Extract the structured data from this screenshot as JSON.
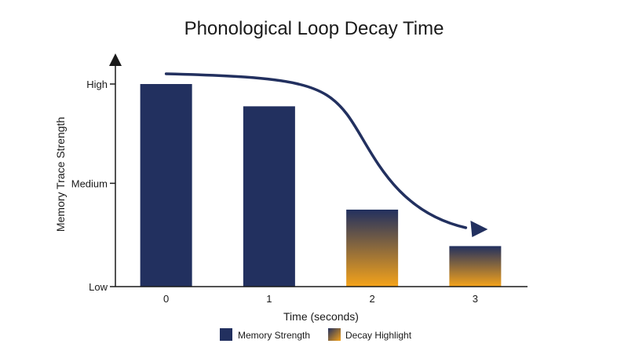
{
  "chart_data": {
    "type": "bar",
    "title": "Phonological Loop Decay Time",
    "xlabel": "Time (seconds)",
    "ylabel": "Memory Trace Strength",
    "categories": [
      "0",
      "1",
      "2",
      "3"
    ],
    "values": [
      100,
      89,
      38,
      20
    ],
    "ylim": [
      0,
      100
    ],
    "y_ticks": [
      {
        "label": "High",
        "value": 100
      },
      {
        "label": "Medium",
        "value": 51
      },
      {
        "label": "Low",
        "value": 0
      }
    ],
    "highlighted_categories": [
      "2",
      "3"
    ],
    "legend": [
      {
        "label": "Memory Strength",
        "style": "solid"
      },
      {
        "label": "Decay Highlight",
        "style": "gradient"
      }
    ],
    "legend_position": "bottom",
    "grid": false,
    "trend_arrow": true,
    "colors": {
      "memory": "#22305f",
      "decay": "#f5a31a",
      "axis": "#1a1a1a",
      "arrow": "#22305f"
    }
  }
}
